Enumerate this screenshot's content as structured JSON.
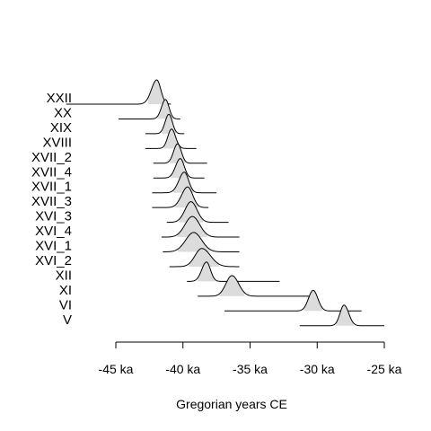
{
  "chart_data": {
    "type": "ridgeline",
    "title": "",
    "xlabel": "Gregorian years CE",
    "ylabel": "",
    "xlim": [
      -47500,
      -24500
    ],
    "x_ticks": [
      -45000,
      -40000,
      -35000,
      -30000,
      -25000
    ],
    "x_tick_labels": [
      "-45 ka",
      "-40 ka",
      "-35 ka",
      "-30 ka",
      "-25 ka"
    ],
    "grid": false,
    "fill_color": "#dcdcdc",
    "line_color": "#000000",
    "series": [
      {
        "name": "XXII",
        "mode": -41950,
        "sd_left": 400,
        "sd_right": 300,
        "peak": 1.0,
        "range": [
          -48700,
          -40900
        ],
        "fill": [
          -42600,
          -41100
        ]
      },
      {
        "name": "XX",
        "mode": -41300,
        "sd_left": 300,
        "sd_right": 260,
        "peak": 0.8,
        "range": [
          -44800,
          -40200
        ],
        "fill": [
          -41900,
          -40700
        ]
      },
      {
        "name": "XIX",
        "mode": -41050,
        "sd_left": 280,
        "sd_right": 260,
        "peak": 0.8,
        "range": [
          -42800,
          -39900
        ],
        "fill": [
          -41600,
          -40500
        ]
      },
      {
        "name": "XVIII",
        "mode": -40850,
        "sd_left": 280,
        "sd_right": 300,
        "peak": 0.8,
        "range": [
          -42800,
          -39000
        ],
        "fill": [
          -41400,
          -40300
        ]
      },
      {
        "name": "XVII_2",
        "mode": -40400,
        "sd_left": 300,
        "sd_right": 280,
        "peak": 0.8,
        "range": [
          -42200,
          -38200
        ],
        "fill": [
          -41000,
          -39800
        ]
      },
      {
        "name": "XVII_4",
        "mode": -40200,
        "sd_left": 350,
        "sd_right": 300,
        "peak": 0.8,
        "range": [
          -42200,
          -38400
        ],
        "fill": [
          -40900,
          -39600
        ]
      },
      {
        "name": "XVII_1",
        "mode": -39900,
        "sd_left": 400,
        "sd_right": 320,
        "peak": 0.85,
        "range": [
          -42300,
          -37500
        ],
        "fill": [
          -40700,
          -39200
        ]
      },
      {
        "name": "XVII_3",
        "mode": -39650,
        "sd_left": 450,
        "sd_right": 380,
        "peak": 0.85,
        "range": [
          -42300,
          -38100
        ],
        "fill": [
          -40600,
          -38800
        ]
      },
      {
        "name": "XVI_3",
        "mode": -39400,
        "sd_left": 450,
        "sd_right": 450,
        "peak": 0.85,
        "range": [
          -41200,
          -36600
        ],
        "fill": [
          -40300,
          -38500
        ]
      },
      {
        "name": "XVI_4",
        "mode": -39300,
        "sd_left": 550,
        "sd_right": 550,
        "peak": 0.85,
        "range": [
          -41600,
          -35800
        ],
        "fill": [
          -40400,
          -38200
        ]
      },
      {
        "name": "XVI_1",
        "mode": -39200,
        "sd_left": 600,
        "sd_right": 600,
        "peak": 0.8,
        "range": [
          -41500,
          -35800
        ],
        "fill": [
          -40400,
          -38000
        ]
      },
      {
        "name": "XVI_2",
        "mode": -38600,
        "sd_left": 500,
        "sd_right": 650,
        "peak": 0.75,
        "range": [
          -41000,
          -35800
        ],
        "fill": [
          -39600,
          -37300
        ]
      },
      {
        "name": "XII",
        "mode": -38250,
        "sd_left": 350,
        "sd_right": 300,
        "peak": 0.8,
        "range": [
          -39700,
          -32800
        ],
        "fill": [
          -38900,
          -37600
        ]
      },
      {
        "name": "XI",
        "mode": -36350,
        "sd_left": 450,
        "sd_right": 500,
        "peak": 0.85,
        "range": [
          -38900,
          -30000
        ],
        "fill": [
          -37300,
          -35400
        ]
      },
      {
        "name": "VI",
        "mode": -30300,
        "sd_left": 350,
        "sd_right": 350,
        "peak": 0.85,
        "range": [
          -36900,
          -26700
        ],
        "fill": [
          -31000,
          -29600
        ]
      },
      {
        "name": "V",
        "mode": -28000,
        "sd_left": 300,
        "sd_right": 350,
        "peak": 0.85,
        "range": [
          -31300,
          -25000
        ],
        "fill": [
          -28600,
          -27300
        ]
      }
    ]
  }
}
